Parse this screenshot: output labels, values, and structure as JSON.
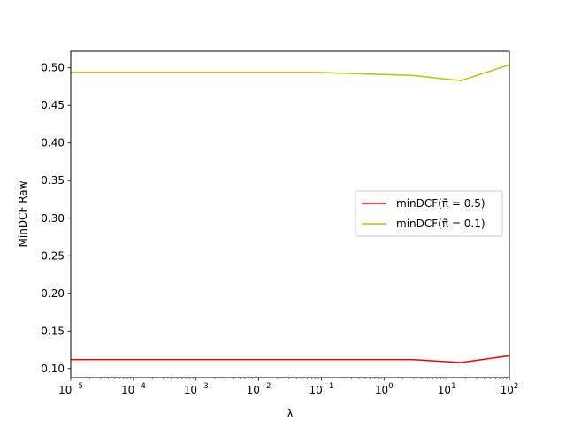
{
  "chart_data": {
    "type": "line",
    "title": "",
    "xlabel": "λ",
    "ylabel": "MinDCF Raw",
    "xscale": "log",
    "xlim": [
      1e-05,
      100
    ],
    "ylim": [
      0.088,
      0.522
    ],
    "grid": false,
    "legend_position": "center-right",
    "x_ticks": [
      {
        "value": 1e-05,
        "base": "10",
        "exp": "−5"
      },
      {
        "value": 0.0001,
        "base": "10",
        "exp": "−4"
      },
      {
        "value": 0.001,
        "base": "10",
        "exp": "−3"
      },
      {
        "value": 0.01,
        "base": "10",
        "exp": "−2"
      },
      {
        "value": 0.1,
        "base": "10",
        "exp": "−1"
      },
      {
        "value": 1,
        "base": "10",
        "exp": "0"
      },
      {
        "value": 10,
        "base": "10",
        "exp": "1"
      },
      {
        "value": 100,
        "base": "10",
        "exp": "2"
      }
    ],
    "y_ticks": [
      {
        "value": 0.1,
        "label": "0.10"
      },
      {
        "value": 0.15,
        "label": "0.15"
      },
      {
        "value": 0.2,
        "label": "0.20"
      },
      {
        "value": 0.25,
        "label": "0.25"
      },
      {
        "value": 0.3,
        "label": "0.30"
      },
      {
        "value": 0.35,
        "label": "0.35"
      },
      {
        "value": 0.4,
        "label": "0.40"
      },
      {
        "value": 0.45,
        "label": "0.45"
      },
      {
        "value": 0.5,
        "label": "0.50"
      }
    ],
    "series": [
      {
        "name": "minDCF(π̃ = 0.5)",
        "color": "#ff0000",
        "x": [
          1e-05,
          0.0001,
          0.001,
          0.01,
          0.0774,
          2.78,
          16.7,
          100
        ],
        "y": [
          0.112,
          0.112,
          0.112,
          0.112,
          0.112,
          0.112,
          0.108,
          0.117
        ]
      },
      {
        "name": "minDCF(π̃ = 0.1)",
        "color": "#bfbf00",
        "x": [
          1e-05,
          0.0001,
          0.001,
          0.01,
          0.0774,
          2.78,
          16.7,
          100
        ],
        "y": [
          0.494,
          0.494,
          0.494,
          0.494,
          0.494,
          0.49,
          0.483,
          0.504
        ]
      }
    ]
  }
}
